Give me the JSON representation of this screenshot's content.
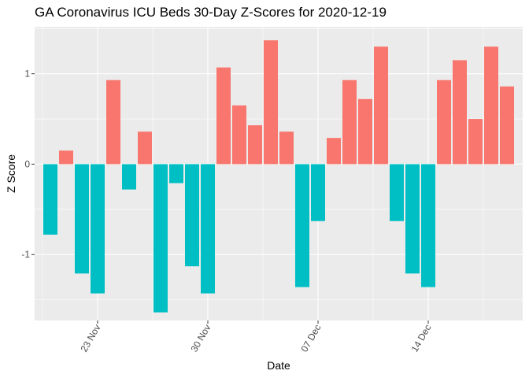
{
  "chart_data": {
    "type": "bar",
    "title": "GA Coronavirus ICU Beds 30-Day Z-Scores for 2020-12-19",
    "xlabel": "Date",
    "ylabel": "Z Score",
    "ylim": [
      -1.73,
      1.52
    ],
    "xlim": [
      "2020-11-19",
      "2020-12-20"
    ],
    "y_ticks": [
      -1,
      0,
      1
    ],
    "x_ticks": [
      "2020-11-23",
      "2020-11-30",
      "2020-12-07",
      "2020-12-14"
    ],
    "x_tick_labels": [
      "23 Nov",
      "30 Nov",
      "07 Dec",
      "14 Dec"
    ],
    "grid": true,
    "legend": "none",
    "colors": {
      "positive": "#F8766D",
      "negative": "#00BFC4",
      "panel": "#EBEBEB",
      "grid": "#FFFFFF"
    },
    "dates": [
      "2020-11-20",
      "2020-11-21",
      "2020-11-22",
      "2020-11-23",
      "2020-11-24",
      "2020-11-25",
      "2020-11-26",
      "2020-11-27",
      "2020-11-28",
      "2020-11-29",
      "2020-11-30",
      "2020-12-01",
      "2020-12-02",
      "2020-12-03",
      "2020-12-04",
      "2020-12-05",
      "2020-12-06",
      "2020-12-07",
      "2020-12-08",
      "2020-12-09",
      "2020-12-10",
      "2020-12-11",
      "2020-12-12",
      "2020-12-13",
      "2020-12-14",
      "2020-12-15",
      "2020-12-16",
      "2020-12-17",
      "2020-12-18",
      "2020-12-19"
    ],
    "values": [
      -0.78,
      0.15,
      -1.21,
      -1.43,
      0.93,
      -0.28,
      0.36,
      -1.64,
      -0.21,
      -1.13,
      -1.43,
      1.07,
      0.65,
      0.43,
      1.37,
      0.36,
      -1.36,
      -0.63,
      0.29,
      0.93,
      0.72,
      1.3,
      -0.63,
      -1.21,
      -1.36,
      0.93,
      1.15,
      0.5,
      1.3,
      0.86
    ]
  }
}
